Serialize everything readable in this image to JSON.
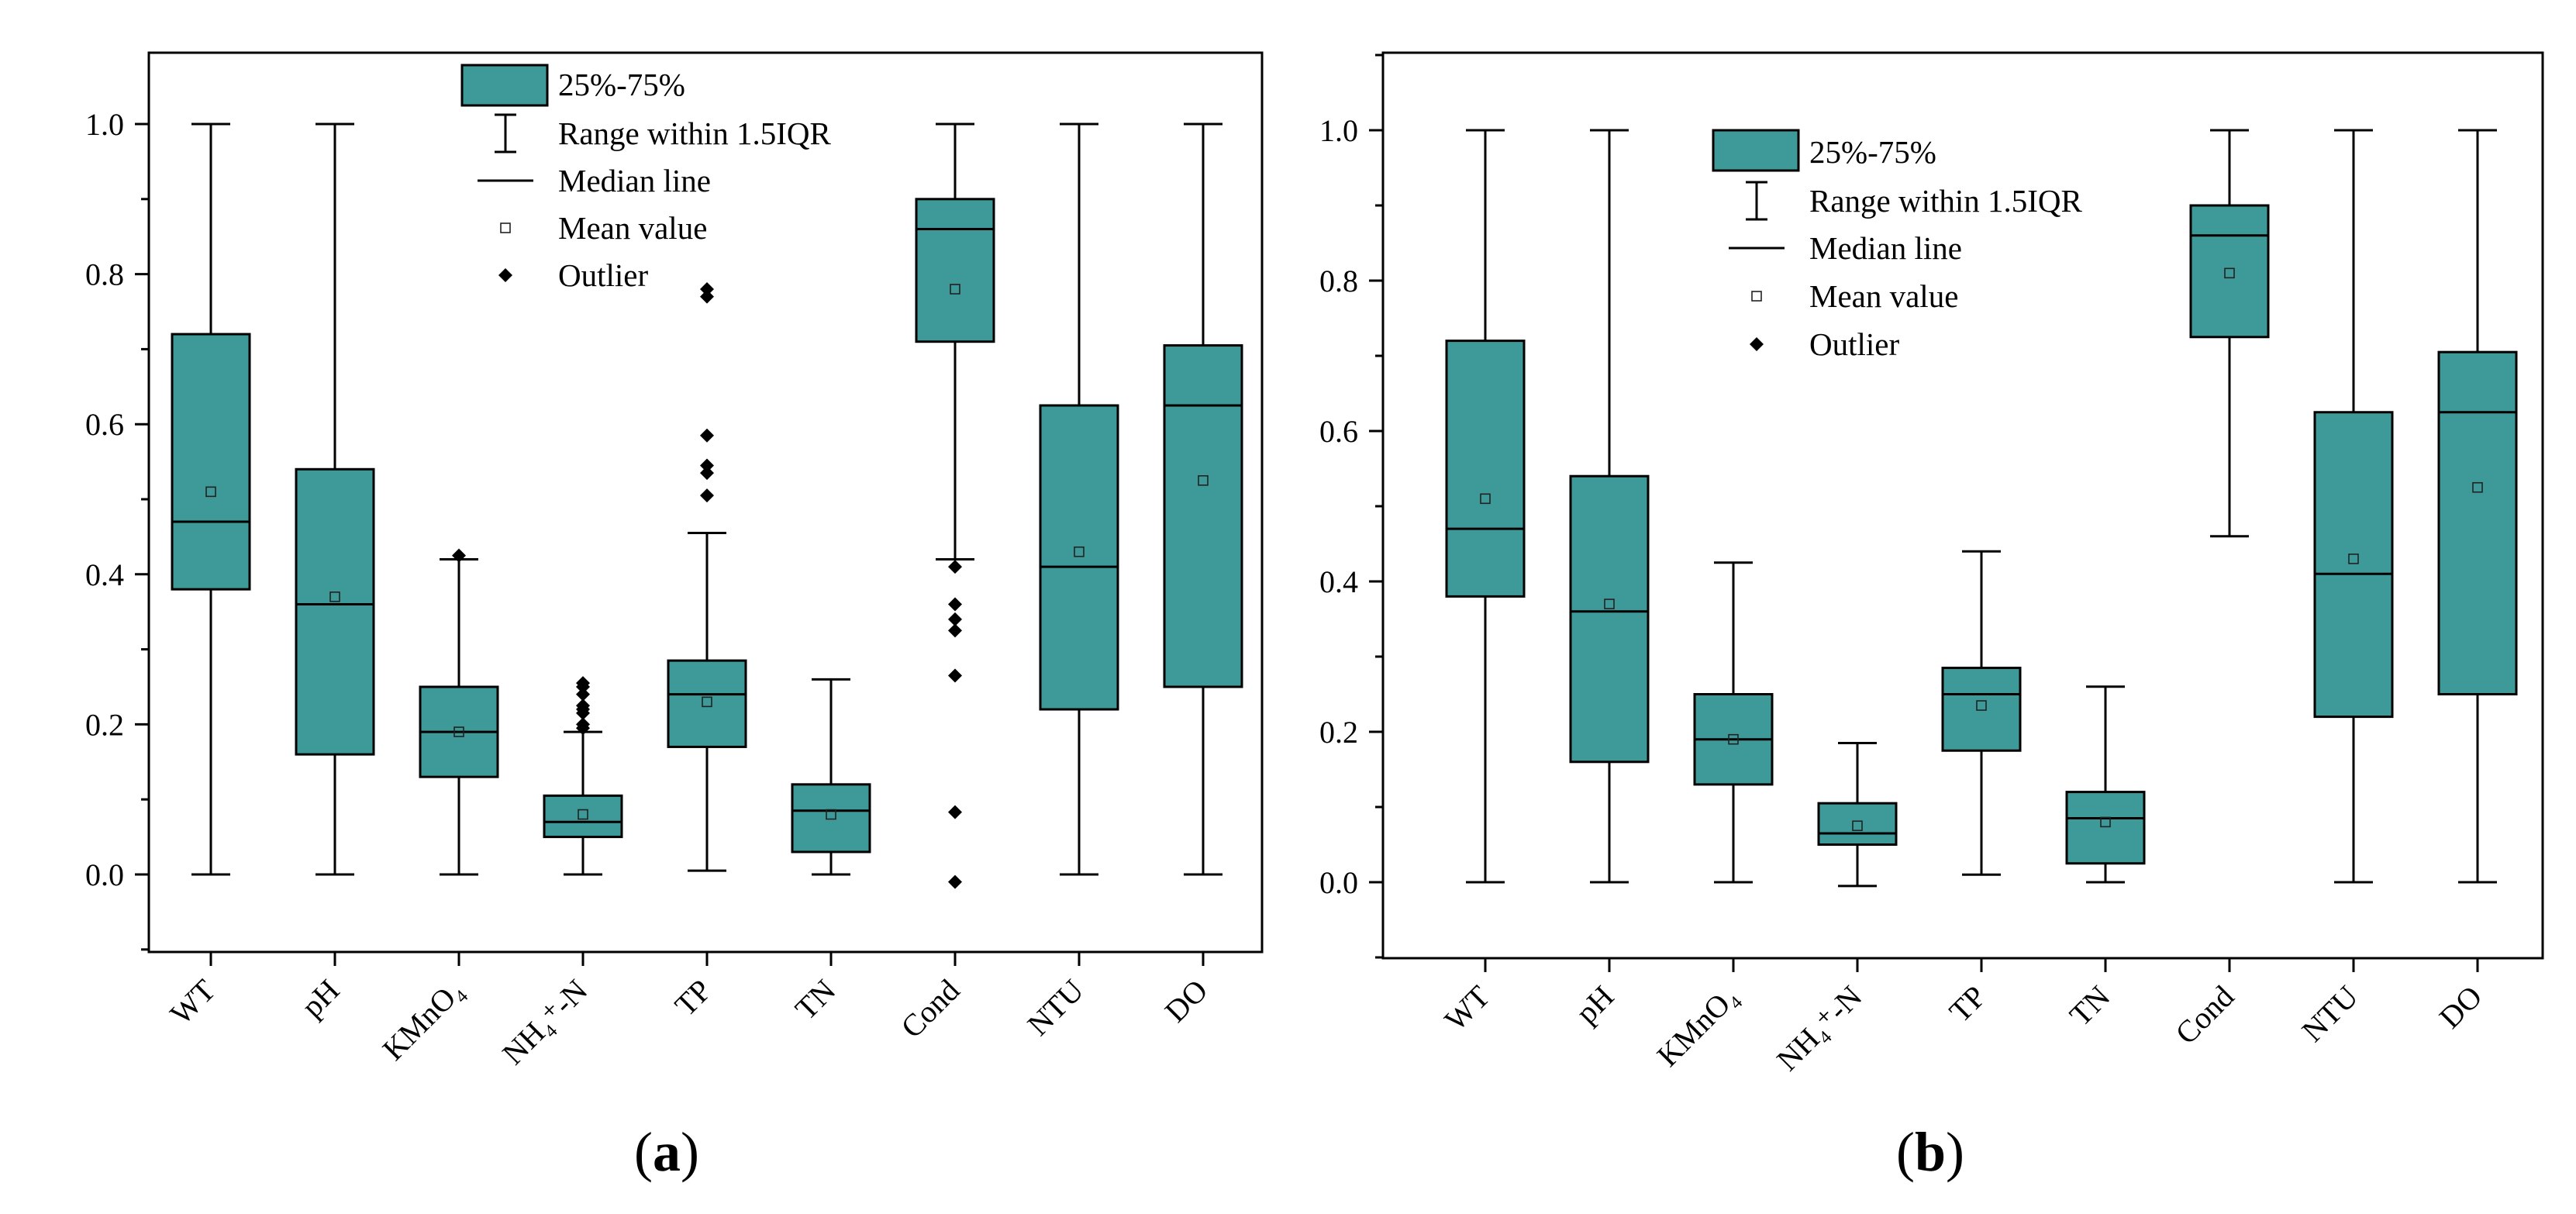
{
  "colors": {
    "box_fill": "#3e9a99",
    "stroke": "#000000",
    "background": "#ffffff"
  },
  "legend": {
    "box_label": "25%-75%",
    "whisker_label": "Range within 1.5IQR",
    "median_label": "Median line",
    "mean_label": "Mean value",
    "outlier_label": "Outlier"
  },
  "chart_data": [
    {
      "type": "boxplot",
      "panel_label": "a",
      "title": "",
      "xlabel": "",
      "ylabel": "",
      "ylim": [
        -0.1,
        1.1
      ],
      "yticks": [
        "0.0",
        "0.2",
        "0.4",
        "0.6",
        "0.8",
        "1.0"
      ],
      "categories": [
        "WT",
        "pH",
        "KMnO₄",
        "NH₄⁺-N",
        "TP",
        "TN",
        "Cond",
        "NTU",
        "DO"
      ],
      "boxes": [
        {
          "category": "WT",
          "whisker_low": 0.0,
          "q1": 0.38,
          "median": 0.47,
          "q3": 0.72,
          "whisker_high": 1.0,
          "mean": 0.51,
          "outliers": []
        },
        {
          "category": "pH",
          "whisker_low": 0.0,
          "q1": 0.16,
          "median": 0.36,
          "q3": 0.54,
          "whisker_high": 1.0,
          "mean": 0.37,
          "outliers": []
        },
        {
          "category": "KMnO₄",
          "whisker_low": 0.0,
          "q1": 0.13,
          "median": 0.19,
          "q3": 0.25,
          "whisker_high": 0.42,
          "mean": 0.19,
          "outliers": [
            0.425
          ]
        },
        {
          "category": "NH₄⁺-N",
          "whisker_low": 0.0,
          "q1": 0.05,
          "median": 0.07,
          "q3": 0.105,
          "whisker_high": 0.19,
          "mean": 0.08,
          "outliers": [
            0.195,
            0.2,
            0.215,
            0.22,
            0.225,
            0.24,
            0.25,
            0.255
          ]
        },
        {
          "category": "TP",
          "whisker_low": 0.005,
          "q1": 0.17,
          "median": 0.24,
          "q3": 0.285,
          "whisker_high": 0.455,
          "mean": 0.23,
          "outliers": [
            0.505,
            0.535,
            0.545,
            0.585,
            0.77,
            0.78
          ]
        },
        {
          "category": "TN",
          "whisker_low": 0.0,
          "q1": 0.03,
          "median": 0.085,
          "q3": 0.12,
          "whisker_high": 0.26,
          "mean": 0.08,
          "outliers": []
        },
        {
          "category": "Cond",
          "whisker_low": 0.42,
          "q1": 0.71,
          "median": 0.86,
          "q3": 0.9,
          "whisker_high": 1.0,
          "mean": 0.78,
          "outliers": [
            -0.01,
            0.083,
            0.265,
            0.325,
            0.34,
            0.36,
            0.41
          ]
        },
        {
          "category": "NTU",
          "whisker_low": 0.0,
          "q1": 0.22,
          "median": 0.41,
          "q3": 0.625,
          "whisker_high": 1.0,
          "mean": 0.43,
          "outliers": []
        },
        {
          "category": "DO",
          "whisker_low": 0.0,
          "q1": 0.25,
          "median": 0.625,
          "q3": 0.705,
          "whisker_high": 1.0,
          "mean": 0.525,
          "outliers": []
        }
      ]
    },
    {
      "type": "boxplot",
      "panel_label": "b",
      "title": "",
      "xlabel": "",
      "ylabel": "",
      "ylim": [
        -0.1,
        1.1
      ],
      "yticks": [
        "0.0",
        "0.2",
        "0.4",
        "0.6",
        "0.8",
        "1.0"
      ],
      "categories": [
        "WT",
        "pH",
        "KMnO₄",
        "NH₄⁺-N",
        "TP",
        "TN",
        "Cond",
        "NTU",
        "DO"
      ],
      "boxes": [
        {
          "category": "WT",
          "whisker_low": 0.0,
          "q1": 0.38,
          "median": 0.47,
          "q3": 0.72,
          "whisker_high": 1.0,
          "mean": 0.51,
          "outliers": []
        },
        {
          "category": "pH",
          "whisker_low": 0.0,
          "q1": 0.16,
          "median": 0.36,
          "q3": 0.54,
          "whisker_high": 1.0,
          "mean": 0.37,
          "outliers": []
        },
        {
          "category": "KMnO₄",
          "whisker_low": 0.0,
          "q1": 0.13,
          "median": 0.19,
          "q3": 0.25,
          "whisker_high": 0.425,
          "mean": 0.19,
          "outliers": []
        },
        {
          "category": "NH₄⁺-N",
          "whisker_low": -0.005,
          "q1": 0.05,
          "median": 0.065,
          "q3": 0.105,
          "whisker_high": 0.185,
          "mean": 0.075,
          "outliers": []
        },
        {
          "category": "TP",
          "whisker_low": 0.01,
          "q1": 0.175,
          "median": 0.25,
          "q3": 0.285,
          "whisker_high": 0.44,
          "mean": 0.235,
          "outliers": []
        },
        {
          "category": "TN",
          "whisker_low": 0.0,
          "q1": 0.025,
          "median": 0.085,
          "q3": 0.12,
          "whisker_high": 0.26,
          "mean": 0.08,
          "outliers": []
        },
        {
          "category": "Cond",
          "whisker_low": 0.46,
          "q1": 0.725,
          "median": 0.86,
          "q3": 0.9,
          "whisker_high": 1.0,
          "mean": 0.81,
          "outliers": []
        },
        {
          "category": "NTU",
          "whisker_low": 0.0,
          "q1": 0.22,
          "median": 0.41,
          "q3": 0.625,
          "whisker_high": 1.0,
          "mean": 0.43,
          "outliers": []
        },
        {
          "category": "DO",
          "whisker_low": 0.0,
          "q1": 0.25,
          "median": 0.625,
          "q3": 0.705,
          "whisker_high": 1.0,
          "mean": 0.525,
          "outliers": []
        }
      ]
    }
  ]
}
